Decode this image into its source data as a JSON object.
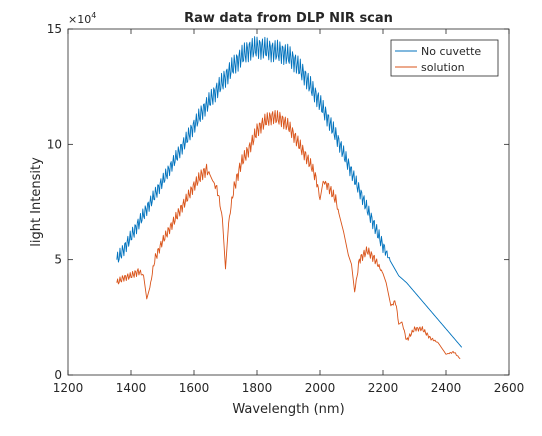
{
  "chart_data": {
    "type": "line",
    "title": "Raw data from DLP NIR scan",
    "xlabel": "Wavelength (nm)",
    "ylabel": "light Intensity",
    "xlim": [
      1200,
      2600
    ],
    "ylim": [
      0,
      150000
    ],
    "xticks": [
      "1200",
      "1400",
      "1600",
      "1800",
      "2000",
      "2200",
      "2400",
      "2600"
    ],
    "yticks": [
      "0",
      "5",
      "10",
      "15"
    ],
    "y_exponent_label": "×10",
    "y_exponent_power": "4",
    "grid": false,
    "legend_position": "top-right",
    "series": [
      {
        "name": "No cuvette",
        "color": "#0072BD",
        "x": [
          1355,
          1375,
          1400,
          1425,
          1450,
          1475,
          1500,
          1525,
          1550,
          1575,
          1600,
          1625,
          1650,
          1675,
          1700,
          1725,
          1750,
          1775,
          1800,
          1825,
          1850,
          1875,
          1900,
          1925,
          1950,
          1975,
          2000,
          2025,
          2050,
          2075,
          2100,
          2125,
          2150,
          2175,
          2200,
          2225,
          2250,
          2275,
          2300,
          2325,
          2350,
          2375,
          2400,
          2425,
          2450
        ],
        "y": [
          50000,
          54000,
          60000,
          66000,
          72000,
          78000,
          84000,
          90000,
          96000,
          102000,
          108000,
          114000,
          119000,
          124000,
          129000,
          134000,
          138000,
          141000,
          142000,
          141500,
          140500,
          140000,
          138500,
          135000,
          130000,
          124000,
          118000,
          111000,
          104000,
          96000,
          88000,
          80000,
          72000,
          64000,
          56000,
          49000,
          43000,
          40000,
          36000,
          32000,
          28000,
          24000,
          20000,
          16000,
          12000
        ],
        "oscillation_amplitude": [
          3000,
          3000,
          3000,
          3000,
          3000,
          3000,
          3000,
          3000,
          3200,
          3400,
          3600,
          3800,
          4000,
          4200,
          4400,
          4600,
          4800,
          5000,
          5000,
          5000,
          5000,
          5000,
          4800,
          4600,
          4400,
          4200,
          4000,
          3800,
          3600,
          3400,
          3200,
          3000,
          3000,
          3000,
          3000,
          0,
          0,
          0,
          0,
          0,
          0,
          0,
          0,
          0,
          0
        ]
      },
      {
        "name": "solution",
        "color": "#D95319",
        "x": [
          1355,
          1375,
          1400,
          1425,
          1440,
          1450,
          1460,
          1475,
          1500,
          1525,
          1550,
          1575,
          1600,
          1625,
          1640,
          1650,
          1660,
          1675,
          1690,
          1700,
          1710,
          1725,
          1750,
          1775,
          1800,
          1825,
          1850,
          1875,
          1900,
          1925,
          1950,
          1975,
          1990,
          2000,
          2010,
          2025,
          2050,
          2060,
          2075,
          2090,
          2100,
          2110,
          2125,
          2150,
          2175,
          2200,
          2210,
          2225,
          2240,
          2250,
          2260,
          2275,
          2300,
          2325,
          2350,
          2375,
          2400,
          2425,
          2445
        ],
        "y": [
          40000,
          42000,
          43000,
          45000,
          43000,
          33000,
          38000,
          50000,
          58000,
          64000,
          70000,
          76000,
          82000,
          87000,
          89000,
          87000,
          84000,
          80000,
          68000,
          46000,
          66000,
          80000,
          92000,
          98000,
          106000,
          110000,
          112000,
          111000,
          108000,
          102000,
          96000,
          90000,
          84000,
          76000,
          84000,
          82000,
          76000,
          70000,
          62000,
          52000,
          48000,
          36000,
          50000,
          54000,
          50000,
          44000,
          40000,
          30000,
          32000,
          22000,
          23000,
          15000,
          20000,
          20000,
          16000,
          14000,
          9000,
          10000,
          7000
        ],
        "oscillation_amplitude": [
          1500,
          1500,
          1500,
          1800,
          0,
          0,
          0,
          2000,
          2000,
          2200,
          2400,
          2500,
          2600,
          2800,
          2800,
          0,
          0,
          2500,
          0,
          0,
          0,
          2800,
          3000,
          3000,
          3200,
          3200,
          3200,
          3200,
          3000,
          3000,
          2800,
          2600,
          2500,
          0,
          0,
          2400,
          2400,
          0,
          0,
          0,
          0,
          0,
          2000,
          2000,
          2000,
          0,
          0,
          0,
          1500,
          0,
          0,
          1000,
          1000,
          1000,
          800,
          0,
          0,
          500,
          0
        ]
      }
    ]
  }
}
